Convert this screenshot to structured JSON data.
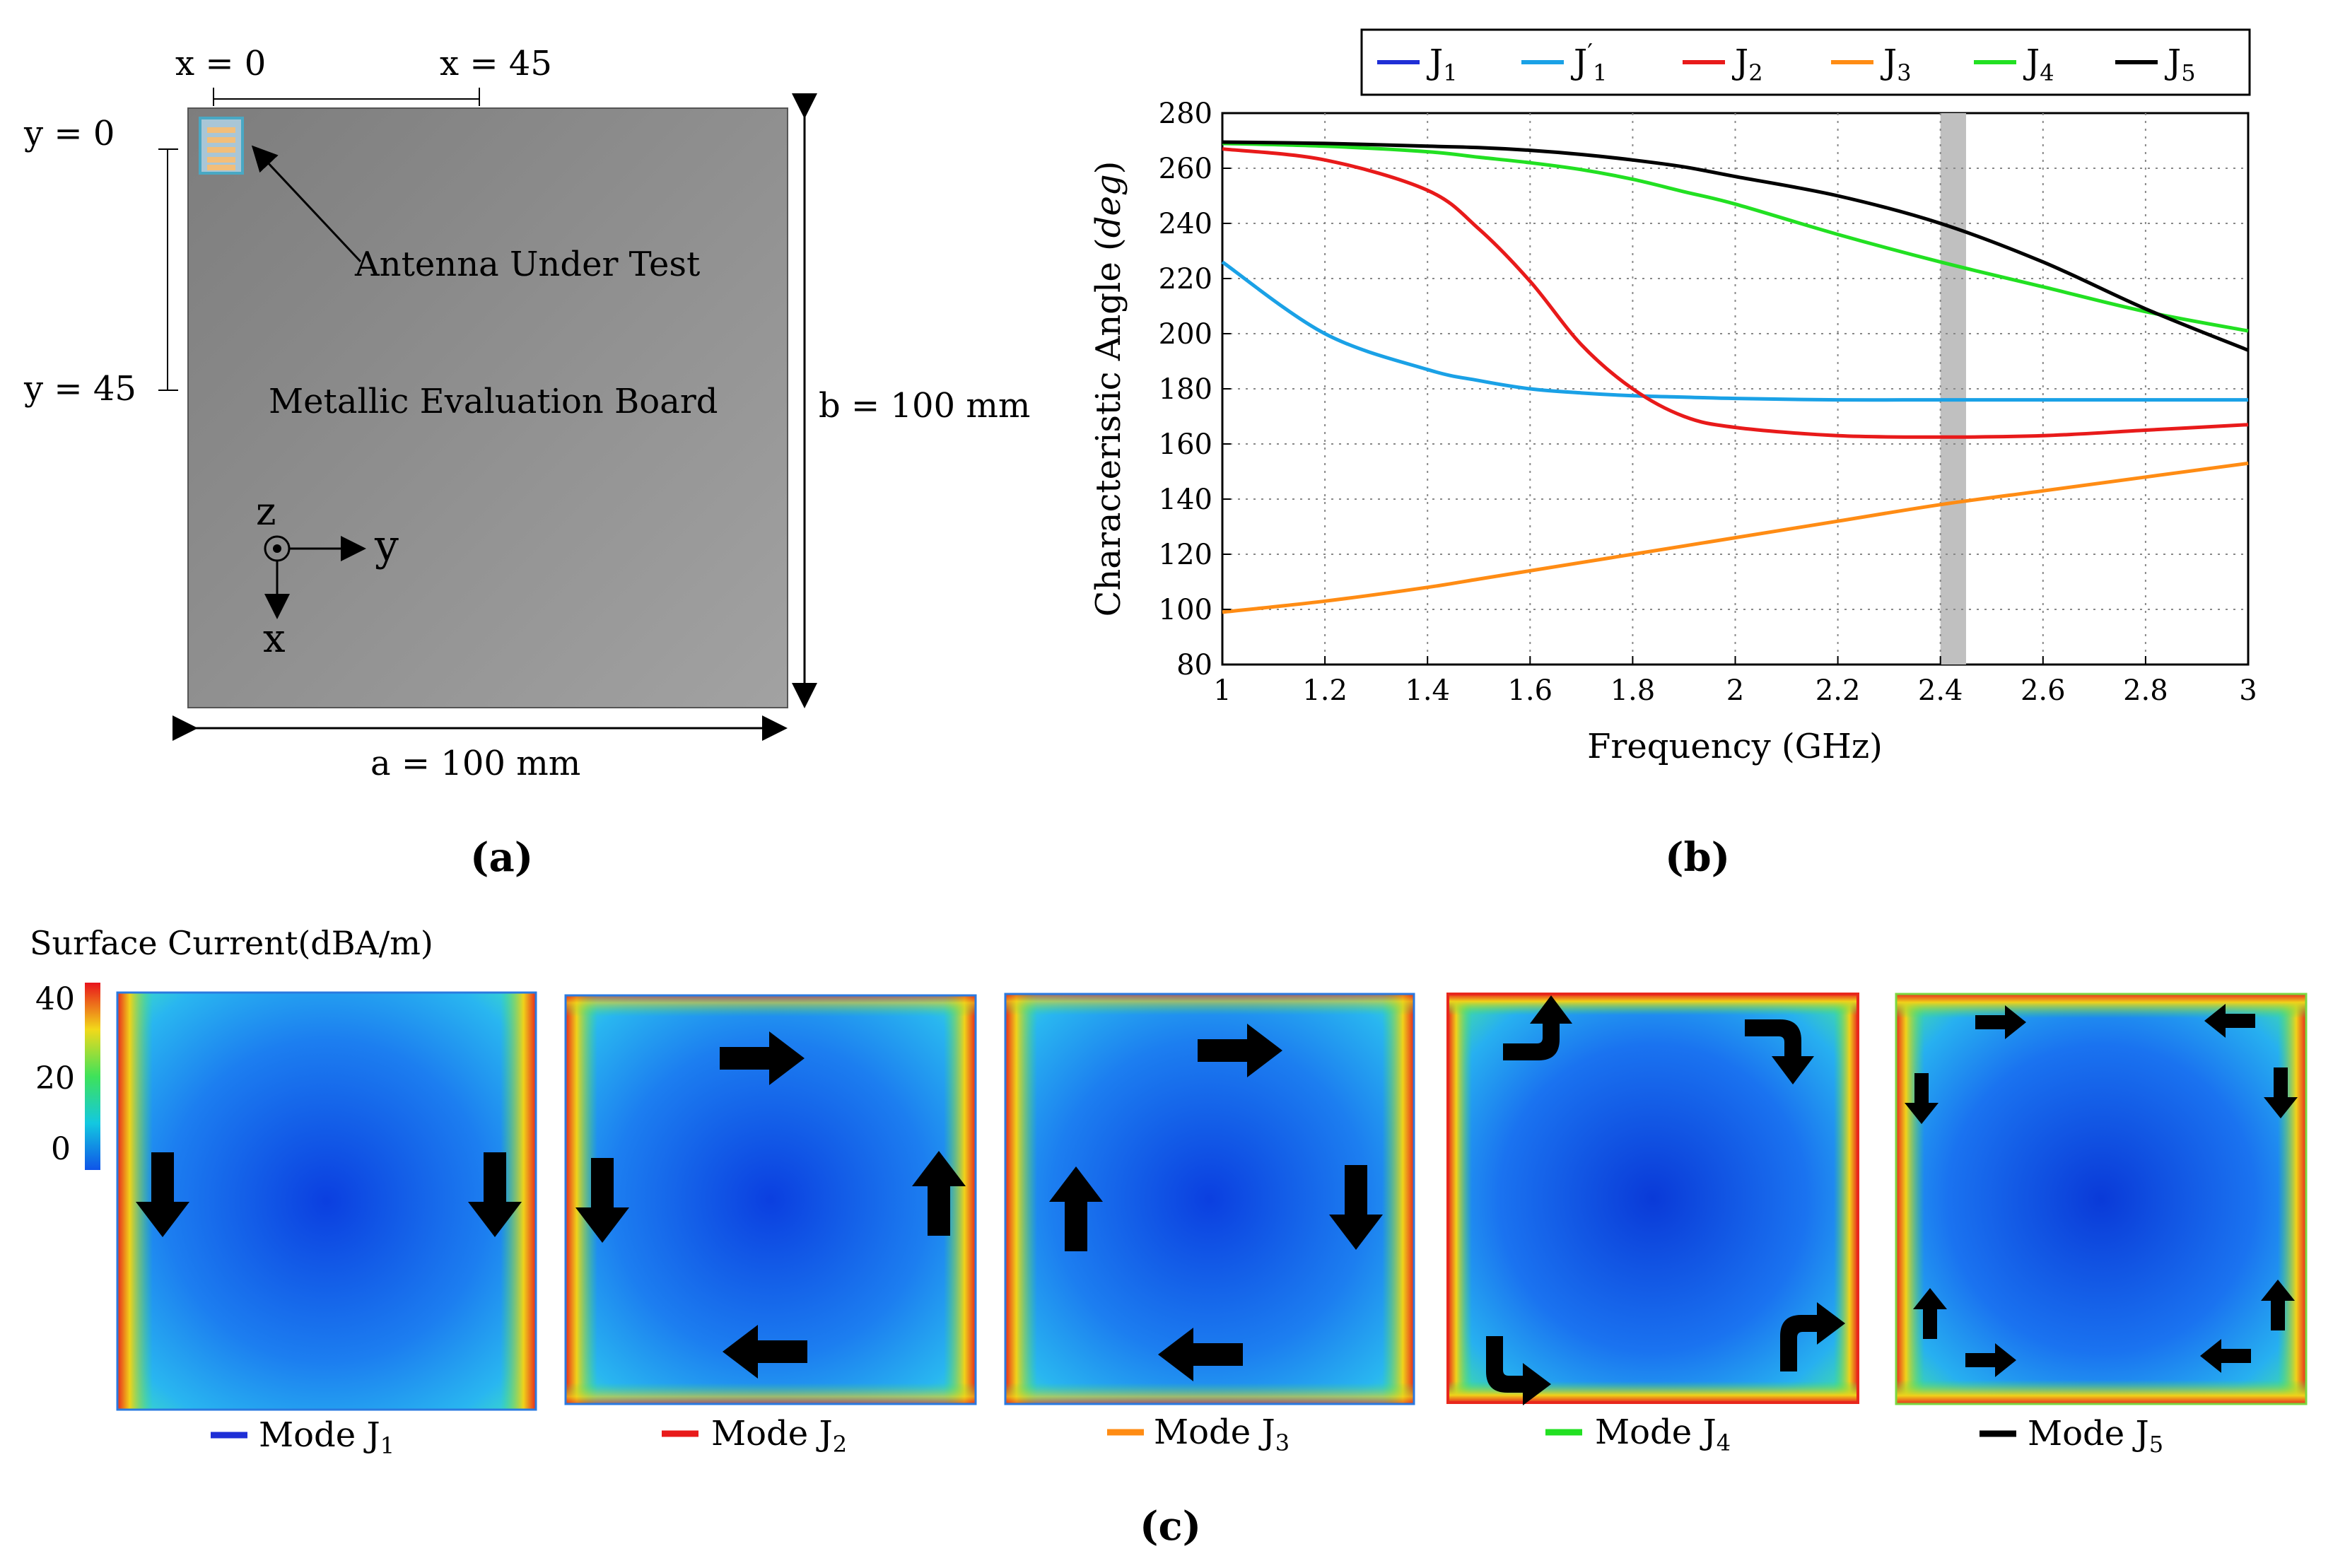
{
  "panel_a": {
    "label": "(a)",
    "x_marker_0": "x = 0",
    "x_marker_45": "x = 45",
    "y_marker_0": "y = 0",
    "y_marker_45": "y = 45",
    "antenna_label": "Antenna Under Test",
    "board_label": "Metallic Evaluation Board",
    "width_label": "a = 100 mm",
    "height_label": "b = 100 mm",
    "axis_z": "z",
    "axis_y": "y",
    "axis_x": "x"
  },
  "panel_b": {
    "label": "(b)",
    "legend": [
      {
        "name": "J1",
        "main": "J",
        "sub": "1",
        "prime": false,
        "color": "#1f2fd6"
      },
      {
        "name": "J'1",
        "main": "J",
        "sub": "1",
        "prime": true,
        "color": "#1aa1e6"
      },
      {
        "name": "J2",
        "main": "J",
        "sub": "2",
        "prime": false,
        "color": "#e81a1a"
      },
      {
        "name": "J3",
        "main": "J",
        "sub": "3",
        "prime": false,
        "color": "#ff8c14"
      },
      {
        "name": "J4",
        "main": "J",
        "sub": "4",
        "prime": false,
        "color": "#22e022"
      },
      {
        "name": "J5",
        "main": "J",
        "sub": "5",
        "prime": false,
        "color": "#000000"
      }
    ]
  },
  "chart_data": {
    "type": "line",
    "xlabel": "Frequency (GHz)",
    "ylabel_main": "Characteristic Angle (",
    "ylabel_unit": "deg",
    "ylabel_close": ")",
    "xlim": [
      1,
      3
    ],
    "ylim": [
      80,
      280
    ],
    "xticks": [
      "1",
      "1.2",
      "1.4",
      "1.6",
      "1.8",
      "2",
      "2.2",
      "2.4",
      "2.6",
      "2.8",
      "3"
    ],
    "yticks": [
      "80",
      "100",
      "120",
      "140",
      "160",
      "180",
      "200",
      "220",
      "240",
      "260",
      "280"
    ],
    "grid": true,
    "legend_position": "top",
    "highlight_band": [
      2.4,
      2.45
    ],
    "x": [
      1.0,
      1.2,
      1.4,
      1.5,
      1.6,
      1.7,
      1.8,
      1.9,
      2.0,
      2.2,
      2.4,
      2.6,
      2.8,
      3.0
    ],
    "series": [
      {
        "name": "J'1",
        "color": "#1aa1e6",
        "values": [
          226,
          200,
          187,
          183,
          180,
          178.5,
          177.5,
          177,
          176.5,
          176,
          176,
          176,
          176,
          176
        ]
      },
      {
        "name": "J2",
        "color": "#e81a1a",
        "values": [
          267,
          263,
          252,
          238,
          219,
          196,
          180,
          170,
          166,
          163,
          162.5,
          163,
          165,
          167
        ]
      },
      {
        "name": "J3",
        "color": "#ff8c14",
        "values": [
          99,
          103,
          108,
          111,
          114,
          117,
          120,
          123,
          126,
          132,
          138,
          143,
          148,
          153
        ]
      },
      {
        "name": "J4",
        "color": "#22e022",
        "values": [
          269,
          268,
          266,
          264,
          262,
          259.5,
          256,
          251.5,
          247,
          236,
          226,
          217,
          208,
          201
        ]
      },
      {
        "name": "J5",
        "color": "#000000",
        "values": [
          269.5,
          269,
          268,
          267.5,
          266.5,
          265,
          263,
          260.5,
          257,
          250,
          240,
          226,
          209,
          194
        ]
      }
    ]
  },
  "panel_c": {
    "label": "(c)",
    "colorbar_title": "Surface Current(dBA/m)",
    "colorbar_ticks": [
      "40",
      "20",
      "0"
    ],
    "modes": [
      {
        "name": "Mode J1",
        "prefix": "Mode J",
        "sub": "1",
        "color": "#1f2fd6"
      },
      {
        "name": "Mode J2",
        "prefix": "Mode J",
        "sub": "2",
        "color": "#e81a1a"
      },
      {
        "name": "Mode J3",
        "prefix": "Mode J",
        "sub": "3",
        "color": "#ff8c14"
      },
      {
        "name": "Mode J4",
        "prefix": "Mode J",
        "sub": "4",
        "color": "#22e022"
      },
      {
        "name": "Mode J5",
        "prefix": "Mode J",
        "sub": "5",
        "color": "#000000"
      }
    ]
  }
}
